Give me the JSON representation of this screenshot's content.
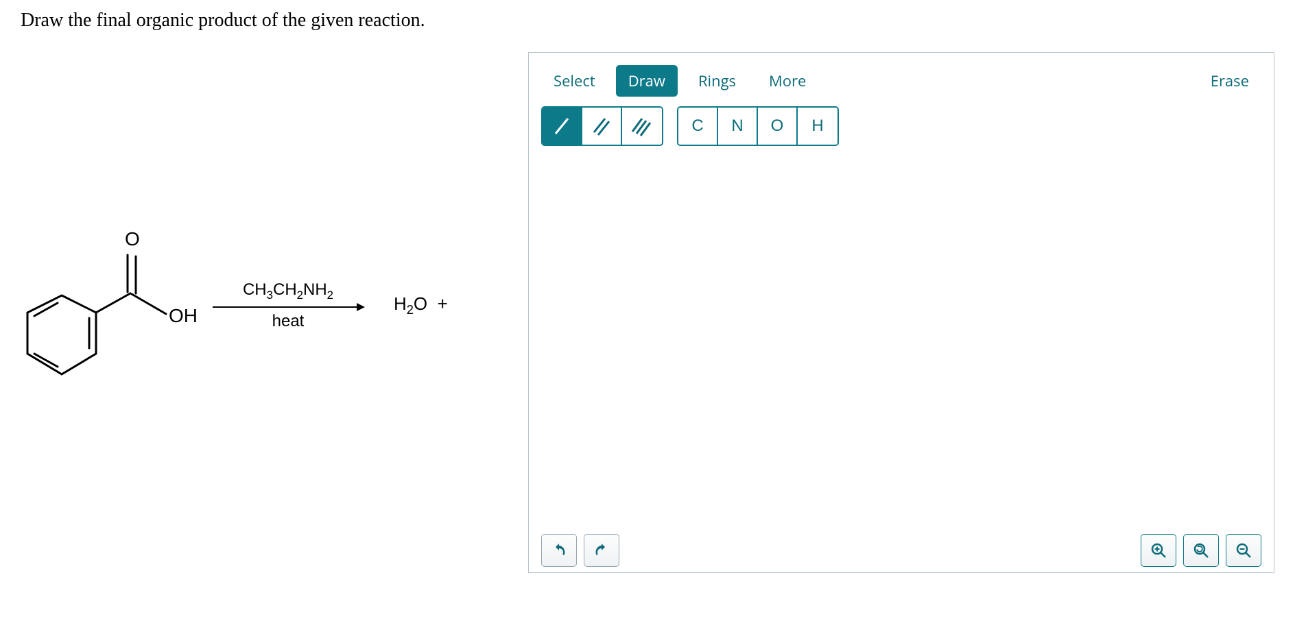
{
  "prompt": "Draw the final organic product of the given reaction.",
  "reaction": {
    "reagent_html": "CH<sub>3</sub>CH<sub>2</sub>NH<sub>2</sub>",
    "condition": "heat",
    "products_html": "H<sub>2</sub>O&nbsp;&nbsp;+",
    "starting_material": {
      "type": "benzoic_acid",
      "labels": {
        "o_top": "O",
        "oh": "OH"
      },
      "colors": {
        "bond": "#000000"
      }
    }
  },
  "editor": {
    "accent_color": "#0d7a8a",
    "text_color": "#0d6b7a",
    "border_color": "#b8c4cc",
    "tabs": {
      "select": "Select",
      "draw": "Draw",
      "rings": "Rings",
      "more": "More",
      "erase": "Erase",
      "active": "draw"
    },
    "bond_tools": {
      "single": "/",
      "double": "//",
      "triple": "///",
      "active": "single"
    },
    "atoms": [
      "C",
      "N",
      "O",
      "H"
    ],
    "footer_icons": {
      "undo": "undo",
      "redo": "redo",
      "zoom_in": "zoom-in",
      "zoom_reset": "zoom-reset",
      "zoom_out": "zoom-out"
    }
  }
}
